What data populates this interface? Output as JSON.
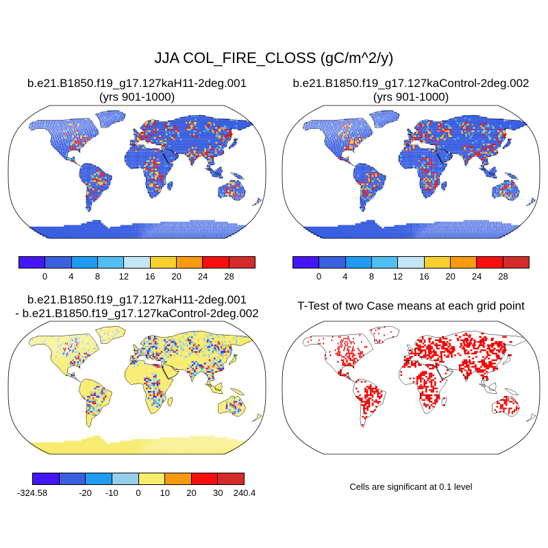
{
  "title": "JJA COL_FIRE_CLOSS (gC/m^2/y)",
  "panels": {
    "top_left": {
      "case": "b.e21.B1850.f19_g17.127kaH11-2deg.001",
      "years": "(yrs 901-1000)"
    },
    "top_right": {
      "case": "b.e21.B1850.f19_g17.127kaControl-2deg.002",
      "years": "(yrs 901-1000)"
    },
    "bottom_left": {
      "line1": "b.e21.B1850.f19_g17.127kaH11-2deg.001",
      "line2": "- b.e21.B1850.f19_g17.127kaControl-2deg.002"
    },
    "bottom_right": {
      "title": "T-Test of two Case means at each grid point"
    }
  },
  "colorbars": {
    "absolute": {
      "colors": [
        "#4416f5",
        "#3a5fe0",
        "#1f9bf2",
        "#52bdf0",
        "#c4e6f5",
        "#f7cf2e",
        "#f79a10",
        "#f50f0f",
        "#d42a2a"
      ],
      "labels": [
        "0",
        "4",
        "8",
        "12",
        "16",
        "20",
        "24",
        "28"
      ]
    },
    "difference": {
      "colors": [
        "#4416f5",
        "#3a5fe0",
        "#1f9bf2",
        "#95cdea",
        "#f7ec6e",
        "#f79a10",
        "#f50f0f",
        "#d42a2a"
      ],
      "labels": [
        "-324.58",
        "-20",
        "-10",
        "0",
        "10",
        "20",
        "30",
        "240.4"
      ]
    }
  },
  "footnote": "Cells are significant at 0.1 level"
}
